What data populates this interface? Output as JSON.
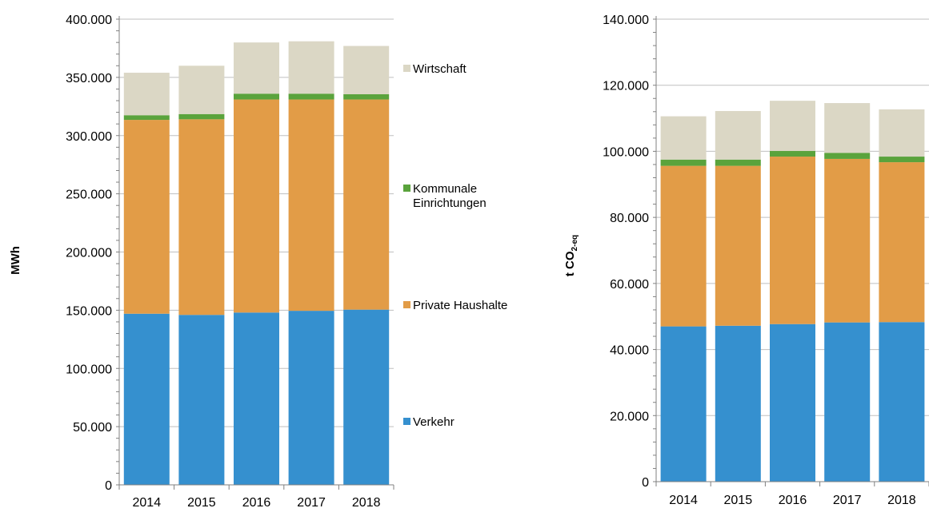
{
  "colors": {
    "verkehr": "#3590cf",
    "private_haushalte": "#e29c47",
    "kommunale": "#5aa33c",
    "wirtschaft": "#dbd7c5",
    "grid": "#bfbfbf",
    "axis": "#808080"
  },
  "chart_data": [
    {
      "type": "bar",
      "stacked": true,
      "categories": [
        "2014",
        "2015",
        "2016",
        "2017",
        "2018"
      ],
      "ylabel": "MWh",
      "ylim": [
        0,
        400000
      ],
      "yticks": [
        "0",
        "50.000",
        "100.000",
        "150.000",
        "200.000",
        "250.000",
        "300.000",
        "350.000",
        "400.000"
      ],
      "ytick_values": [
        0,
        50000,
        100000,
        150000,
        200000,
        250000,
        300000,
        350000,
        400000
      ],
      "grid": true,
      "legend_position": "right",
      "legend": [
        {
          "label": "Wirtschaft",
          "color_key": "wirtschaft"
        },
        {
          "label_lines": [
            "Kommunale",
            "Einrichtungen"
          ],
          "color_key": "kommunale"
        },
        {
          "label": "Private Haushalte",
          "color_key": "private_haushalte"
        },
        {
          "label": "Verkehr",
          "color_key": "verkehr"
        }
      ],
      "series": [
        {
          "name": "Verkehr",
          "color_key": "verkehr",
          "values": [
            147000,
            146000,
            148000,
            149500,
            150500
          ]
        },
        {
          "name": "Private Haushalte",
          "color_key": "private_haushalte",
          "values": [
            166500,
            168000,
            183000,
            181500,
            180500
          ]
        },
        {
          "name": "Kommunale Einrichtungen",
          "color_key": "kommunale",
          "values": [
            4000,
            4500,
            5000,
            5000,
            4500
          ]
        },
        {
          "name": "Wirtschaft",
          "color_key": "wirtschaft",
          "values": [
            36500,
            41500,
            44000,
            45000,
            41500
          ]
        }
      ]
    },
    {
      "type": "bar",
      "stacked": true,
      "categories": [
        "2014",
        "2015",
        "2016",
        "2017",
        "2018"
      ],
      "ylabel": "t CO",
      "ylabel_subscript": "2-eq",
      "ylim": [
        0,
        140000
      ],
      "yticks": [
        "0",
        "20.000",
        "40.000",
        "60.000",
        "80.000",
        "100.000",
        "120.000",
        "140.000"
      ],
      "ytick_values": [
        0,
        20000,
        40000,
        60000,
        80000,
        100000,
        120000,
        140000
      ],
      "grid": true,
      "series": [
        {
          "name": "Verkehr",
          "color_key": "verkehr",
          "values": [
            47000,
            47200,
            47700,
            48200,
            48300
          ]
        },
        {
          "name": "Private Haushalte",
          "color_key": "private_haushalte",
          "values": [
            48600,
            48400,
            50700,
            49500,
            48400
          ]
        },
        {
          "name": "Kommunale Einrichtungen",
          "color_key": "kommunale",
          "values": [
            1900,
            1900,
            1700,
            1800,
            1700
          ]
        },
        {
          "name": "Wirtschaft",
          "color_key": "wirtschaft",
          "values": [
            13100,
            14700,
            15200,
            15100,
            14300
          ]
        }
      ]
    }
  ]
}
